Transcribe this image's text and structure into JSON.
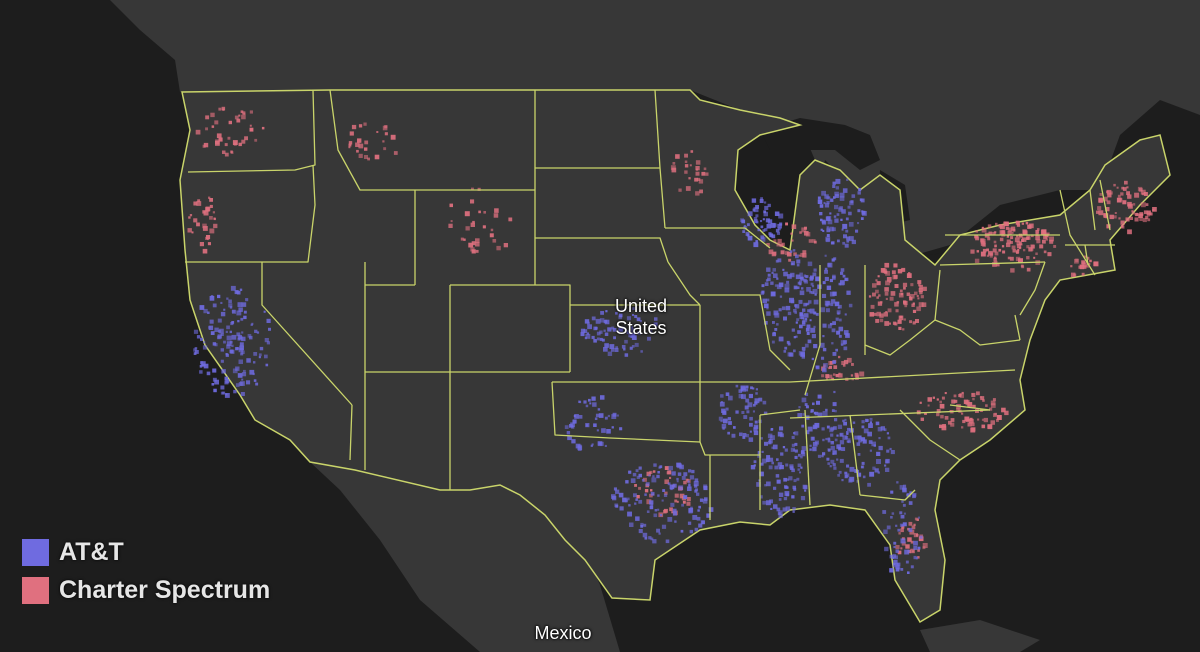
{
  "map": {
    "country_label": "United States",
    "neighbor_label": "Mexico",
    "land_color": "#373737",
    "water_color": "#1d1d1d",
    "border_color": "#c9d46a"
  },
  "legend": [
    {
      "label": "AT&T",
      "color": "#6f6be0"
    },
    {
      "label": "Charter Spectrum",
      "color": "#e0707f"
    }
  ]
}
